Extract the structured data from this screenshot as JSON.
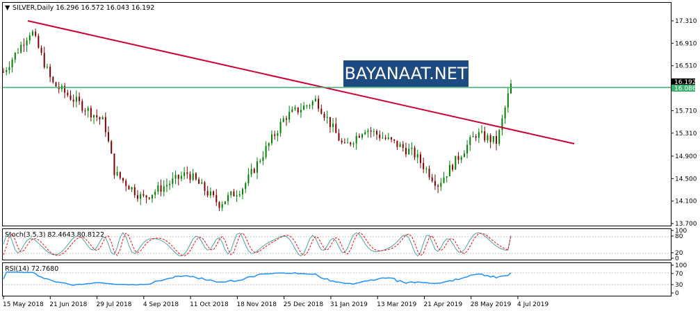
{
  "main_header": {
    "arrow": "▼",
    "text": "SILVER,Daily  16.296 16.572 16.043 16.192"
  },
  "stoch_header": "Stoch(3,5,3) 82.4643 80.8122",
  "rsi_header": "RSI(14) 72.7680",
  "watermark": "BAYANAAT.NET",
  "price_labels": {
    "current": "16.192",
    "line": "16.086"
  },
  "colors": {
    "up_candle": "#008000",
    "down_candle": "#800000",
    "trendline": "#cc0033",
    "hline": "#3cb371",
    "stoch_main": "#4fa1a3",
    "stoch_signal": "#ff0000",
    "rsi": "#1e90ff",
    "watermark_bg": "#1e4a82"
  },
  "chart_data": [
    {
      "type": "candlestick",
      "symbol": "SILVER",
      "timeframe": "Daily",
      "last_ohlc": {
        "open": 16.296,
        "high": 16.572,
        "low": 16.043,
        "close": 16.192
      },
      "y_ticks": [
        17.31,
        16.91,
        16.51,
        16.192,
        16.086,
        15.71,
        15.31,
        14.9,
        14.5,
        14.1,
        13.7
      ],
      "x_ticks": [
        "15 May 2018",
        "21 Jun 2018",
        "29 Jul 2018",
        "4 Sep 2018",
        "11 Oct 2018",
        "18 Nov 2018",
        "25 Dec 2018",
        "31 Jan 2019",
        "13 Mar 2019",
        "21 Apr 2019",
        "28 May 2019",
        "4 Jul 2019"
      ],
      "horizontal_line": 16.086,
      "trendline": {
        "from": {
          "date": "2018-06",
          "price": 17.3
        },
        "to": {
          "date": "2019-07",
          "price": 15.1
        }
      },
      "series_path": [
        {
          "x": "15 May 2018",
          "y": 16.4
        },
        {
          "x": "early Jun 2018",
          "y": 17.15
        },
        {
          "x": "21 Jun 2018",
          "y": 16.2
        },
        {
          "x": "29 Jul 2018",
          "y": 15.5
        },
        {
          "x": "mid Aug 2018",
          "y": 14.6
        },
        {
          "x": "4 Sep 2018",
          "y": 14.15
        },
        {
          "x": "11 Oct 2018",
          "y": 14.6
        },
        {
          "x": "mid Nov 2018",
          "y": 14.05
        },
        {
          "x": "18 Nov 2018",
          "y": 14.35
        },
        {
          "x": "25 Dec 2018",
          "y": 15.6
        },
        {
          "x": "31 Jan 2019",
          "y": 15.9
        },
        {
          "x": "mid Feb 2019",
          "y": 15.05
        },
        {
          "x": "13 Mar 2019",
          "y": 15.4
        },
        {
          "x": "21 Apr 2019",
          "y": 14.95
        },
        {
          "x": "late Apr 2019",
          "y": 14.4
        },
        {
          "x": "28 May 2019",
          "y": 15.3
        },
        {
          "x": "late Jun 2019",
          "y": 15.15
        },
        {
          "x": "4 Jul 2019",
          "y": 16.19
        }
      ]
    },
    {
      "type": "line",
      "name": "Stoch(3,5,3)",
      "y_ticks": [
        100,
        80,
        20,
        0
      ],
      "last_values": {
        "main": 82.4643,
        "signal": 80.8122
      }
    },
    {
      "type": "line",
      "name": "RSI(14)",
      "y_ticks": [
        100,
        70,
        30,
        0
      ],
      "last_value": 72.768
    }
  ]
}
